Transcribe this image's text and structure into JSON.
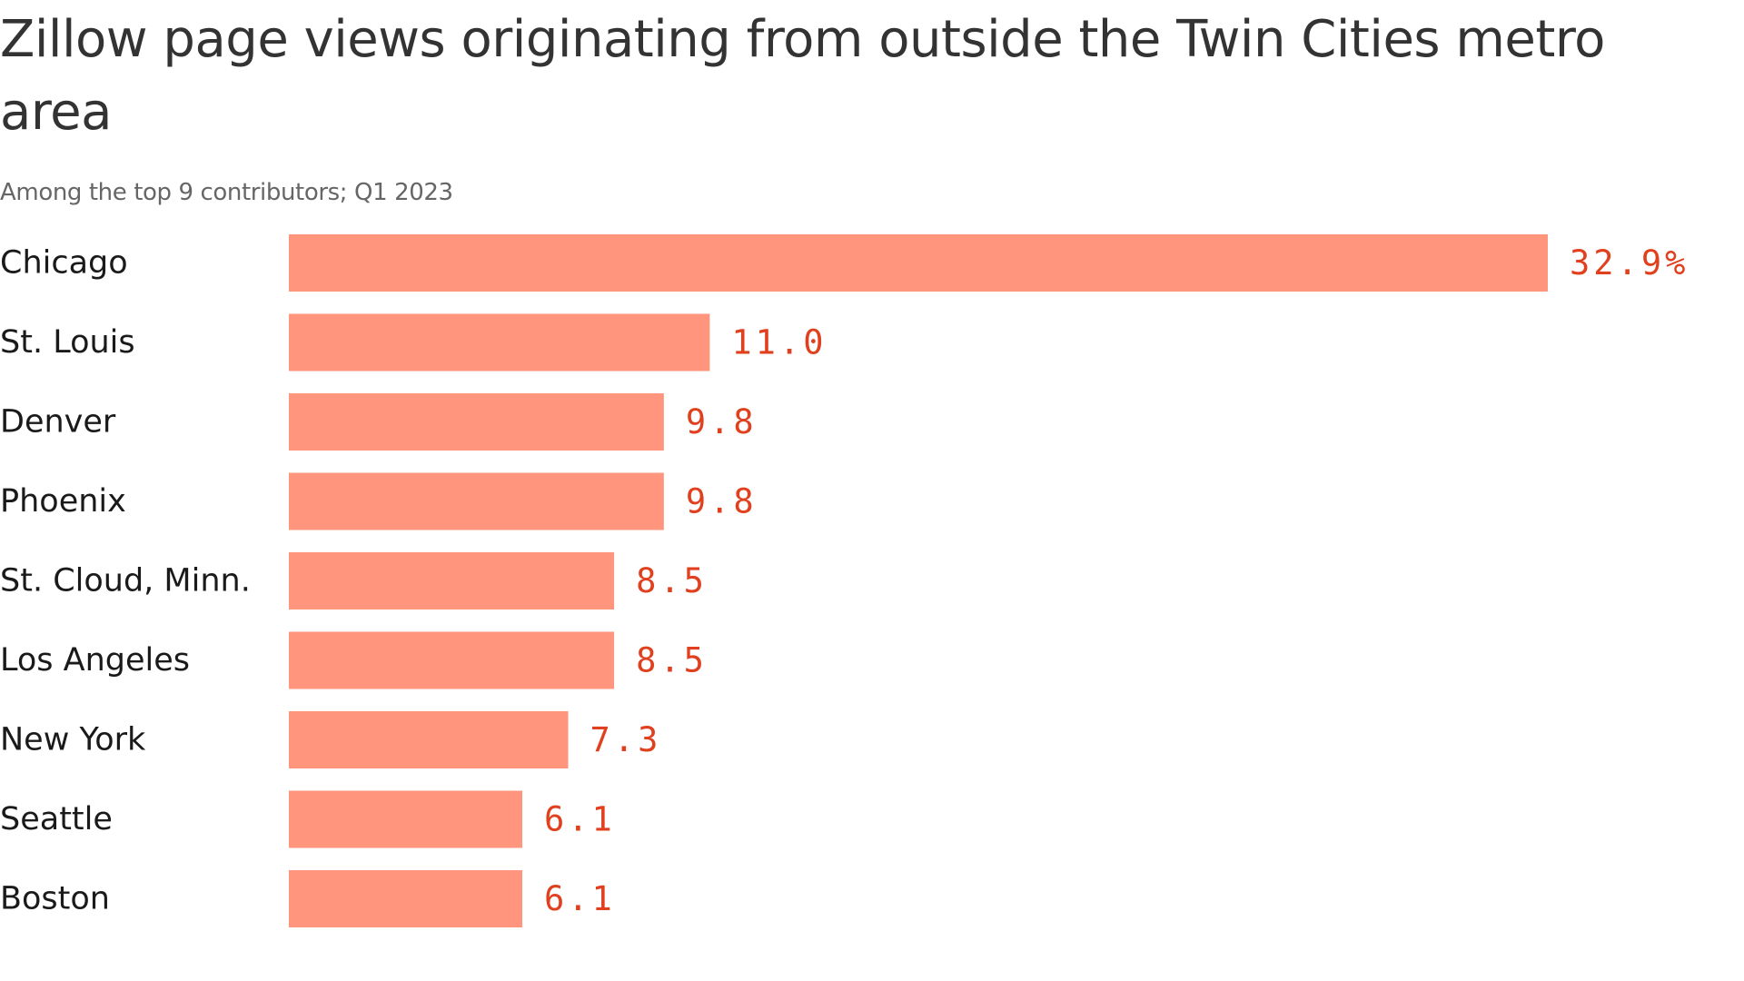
{
  "chart_data": {
    "type": "bar",
    "orientation": "horizontal",
    "title": "Zillow page views originating from outside the Twin Cities metro area",
    "subtitle": "Among the top 9 contributors; Q1 2023",
    "categories": [
      "Chicago",
      "St. Louis",
      "Denver",
      "Phoenix",
      "St. Cloud, Minn.",
      "Los Angeles",
      "New York",
      "Seattle",
      "Boston"
    ],
    "values": [
      32.9,
      11.0,
      9.8,
      9.8,
      8.5,
      8.5,
      7.3,
      6.1,
      6.1
    ],
    "value_labels": [
      "32.9%",
      "11.0",
      "9.8",
      "9.8",
      "8.5",
      "8.5",
      "7.3",
      "6.1",
      "6.1"
    ],
    "xlabel": "",
    "ylabel": "",
    "xlim": [
      0,
      32.9
    ],
    "grid": false,
    "bar_color": "#ff957c",
    "label_color": "#e0401e"
  }
}
